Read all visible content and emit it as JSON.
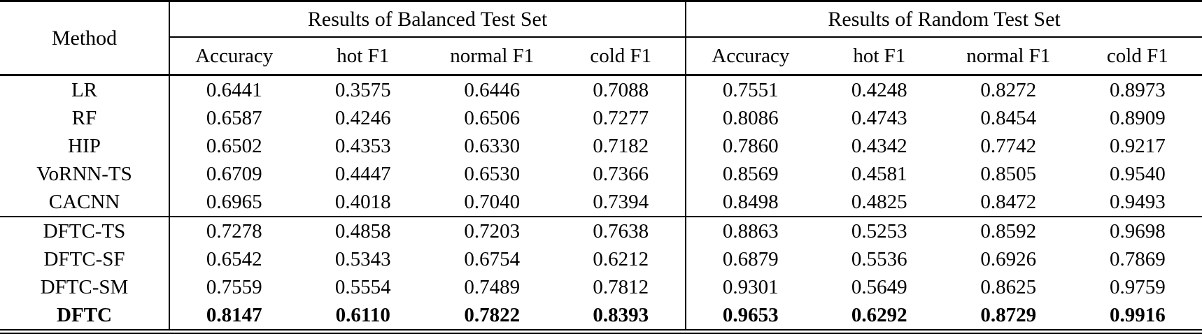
{
  "table": {
    "method_header": "Method",
    "groups": [
      {
        "label": "Results of Balanced Test Set",
        "columns": [
          "Accuracy",
          "hot F1",
          "normal F1",
          "cold F1"
        ]
      },
      {
        "label": "Results of Random Test Set",
        "columns": [
          "Accuracy",
          "hot F1",
          "normal F1",
          "cold F1"
        ]
      }
    ],
    "rows": [
      {
        "method": "LR",
        "values": [
          "0.6441",
          "0.3575",
          "0.6446",
          "0.7088",
          "0.7551",
          "0.4248",
          "0.8272",
          "0.8973"
        ],
        "bold": false,
        "section_start": false
      },
      {
        "method": "RF",
        "values": [
          "0.6587",
          "0.4246",
          "0.6506",
          "0.7277",
          "0.8086",
          "0.4743",
          "0.8454",
          "0.8909"
        ],
        "bold": false,
        "section_start": false
      },
      {
        "method": "HIP",
        "values": [
          "0.6502",
          "0.4353",
          "0.6330",
          "0.7182",
          "0.7860",
          "0.4342",
          "0.7742",
          "0.9217"
        ],
        "bold": false,
        "section_start": false
      },
      {
        "method": "VoRNN-TS",
        "values": [
          "0.6709",
          "0.4447",
          "0.6530",
          "0.7366",
          "0.8569",
          "0.4581",
          "0.8505",
          "0.9540"
        ],
        "bold": false,
        "section_start": false
      },
      {
        "method": "CACNN",
        "values": [
          "0.6965",
          "0.4018",
          "0.7040",
          "0.7394",
          "0.8498",
          "0.4825",
          "0.8472",
          "0.9493"
        ],
        "bold": false,
        "section_start": false
      },
      {
        "method": "DFTC-TS",
        "values": [
          "0.7278",
          "0.4858",
          "0.7203",
          "0.7638",
          "0.8863",
          "0.5253",
          "0.8592",
          "0.9698"
        ],
        "bold": false,
        "section_start": true
      },
      {
        "method": "DFTC-SF",
        "values": [
          "0.6542",
          "0.5343",
          "0.6754",
          "0.6212",
          "0.6879",
          "0.5536",
          "0.6926",
          "0.7869"
        ],
        "bold": false,
        "section_start": false
      },
      {
        "method": "DFTC-SM",
        "values": [
          "0.7559",
          "0.5554",
          "0.7489",
          "0.7812",
          "0.9301",
          "0.5649",
          "0.8625",
          "0.9759"
        ],
        "bold": false,
        "section_start": false
      },
      {
        "method": "DFTC",
        "values": [
          "0.8147",
          "0.6110",
          "0.7822",
          "0.8393",
          "0.9653",
          "0.6292",
          "0.8729",
          "0.9916"
        ],
        "bold": true,
        "section_start": false
      }
    ],
    "colors": {
      "text": "#000000",
      "background": "#ffffff",
      "rule": "#000000"
    }
  }
}
